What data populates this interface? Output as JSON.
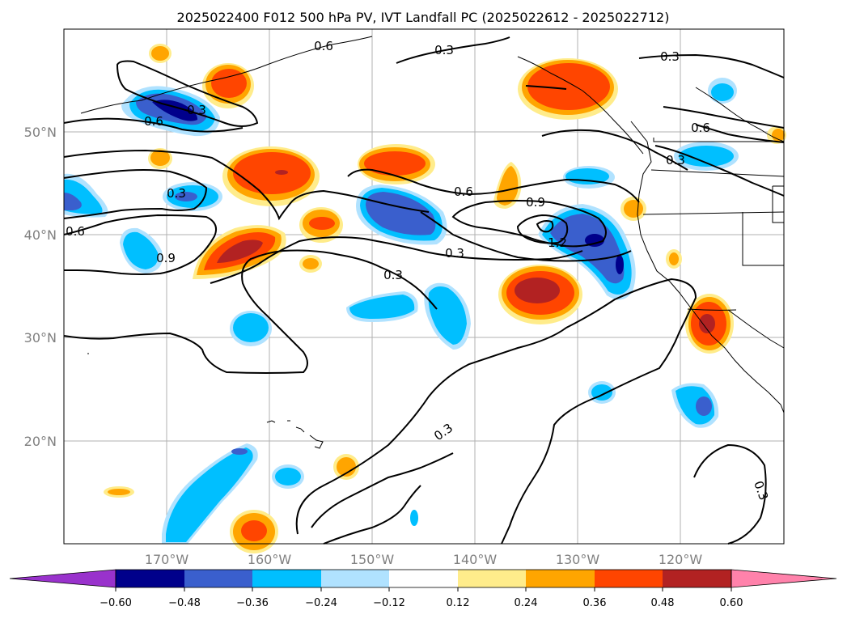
{
  "title": "2025022400 F012 500 hPa PV, IVT Landfall PC (2025022612 - 2025022712)",
  "map": {
    "lat_labels": [
      "50°N",
      "40°N",
      "30°N",
      "20°N"
    ],
    "lon_labels": [
      "170°W",
      "160°W",
      "150°W",
      "140°W",
      "130°W",
      "120°W"
    ],
    "contour_labels": [
      "0.3",
      "0.6",
      "0.3",
      "0.6",
      "0.9",
      "0.6",
      "0.3",
      "0.9",
      "1.2",
      "0.3",
      "0.3",
      "0.3",
      "0.3",
      "0.6",
      "0.3",
      "0.6",
      "0.3"
    ]
  },
  "colorbar": {
    "ticks": [
      "−0.60",
      "−0.48",
      "−0.36",
      "−0.24",
      "−0.12",
      "0.12",
      "0.24",
      "0.36",
      "0.48",
      "0.60"
    ],
    "colors": [
      "#9932cc",
      "#00008b",
      "#3a5fcd",
      "#00bfff",
      "#b0e2ff",
      "#ffffff",
      "#ffec8b",
      "#ffa500",
      "#ff4500",
      "#b22222",
      "#ff82ab"
    ]
  },
  "colors": {
    "neg1": "#b0e2ff",
    "neg2": "#00bfff",
    "neg3": "#3a5fcd",
    "neg4": "#00008b",
    "pos1": "#ffec8b",
    "pos2": "#ffa500",
    "pos3": "#ff4500",
    "pos4": "#b22222"
  }
}
